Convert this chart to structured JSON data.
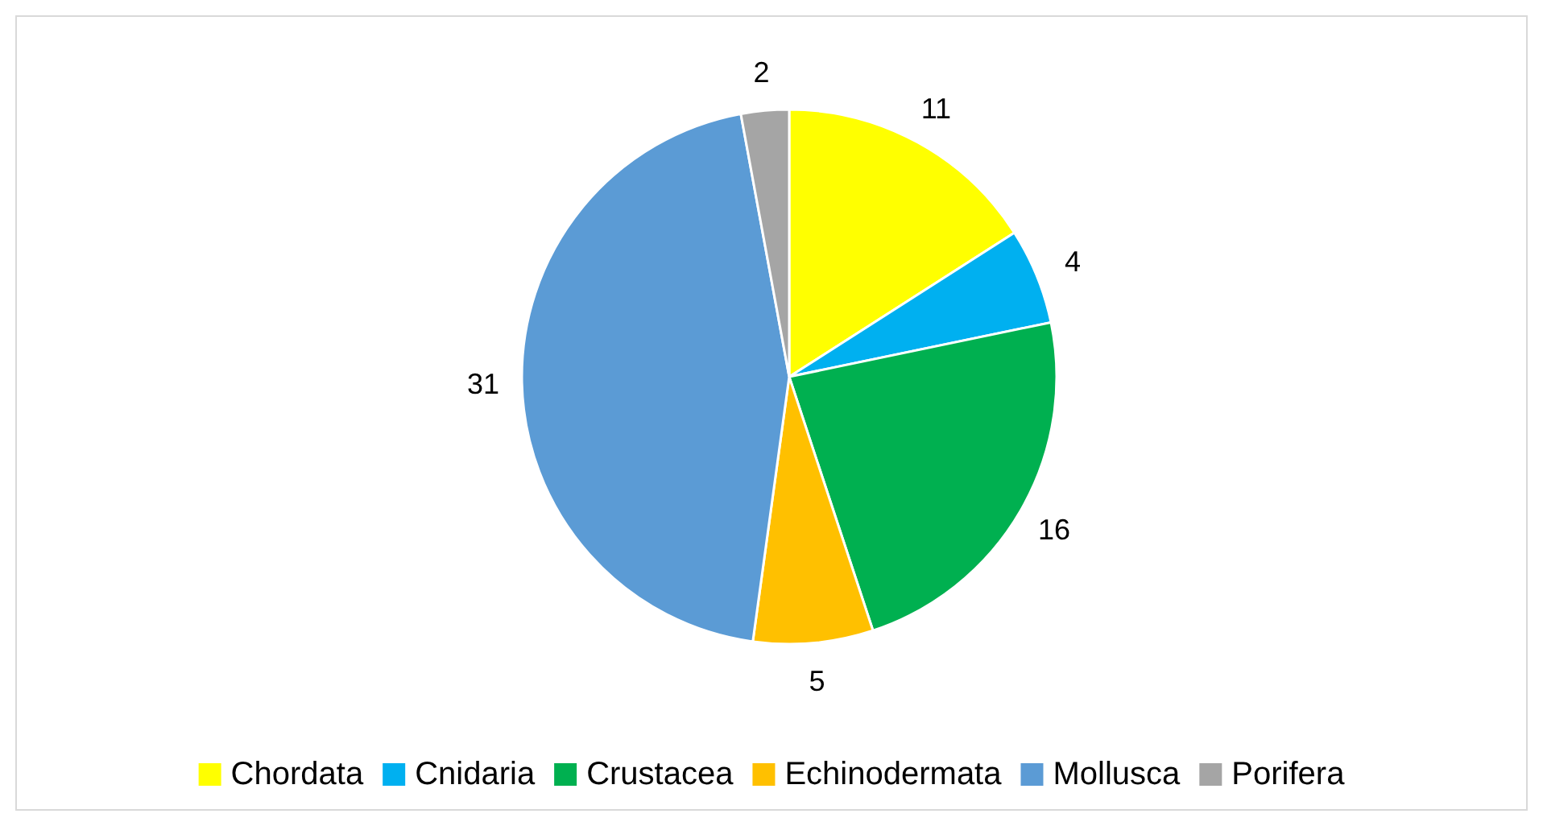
{
  "chart_data": {
    "type": "pie",
    "categories": [
      "Chordata",
      "Cnidaria",
      "Crustacea",
      "Echinodermata",
      "Mollusca",
      "Porifera"
    ],
    "values": [
      11,
      4,
      16,
      5,
      31,
      2
    ],
    "colors": [
      "#ffff00",
      "#00b0f0",
      "#00b050",
      "#ffc000",
      "#5b9bd5",
      "#a5a5a5"
    ],
    "data_labels": true,
    "legend": "bottom"
  }
}
